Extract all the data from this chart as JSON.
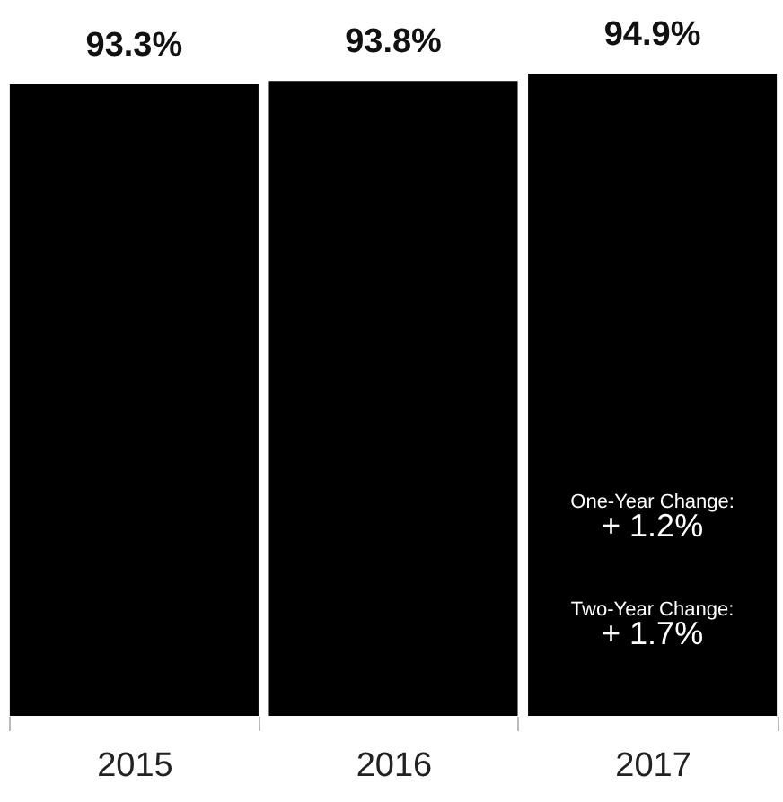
{
  "chart_data": {
    "type": "bar",
    "categories": [
      "2015",
      "2016",
      "2017"
    ],
    "values": [
      93.3,
      93.8,
      94.9
    ],
    "value_labels": [
      "93.3%",
      "93.8%",
      "94.9%"
    ],
    "color": "#000000",
    "annotations": [
      "One-Year Change:",
      "+ 1.2%",
      "Two-Year Change:",
      "+ 1.7%"
    ]
  }
}
